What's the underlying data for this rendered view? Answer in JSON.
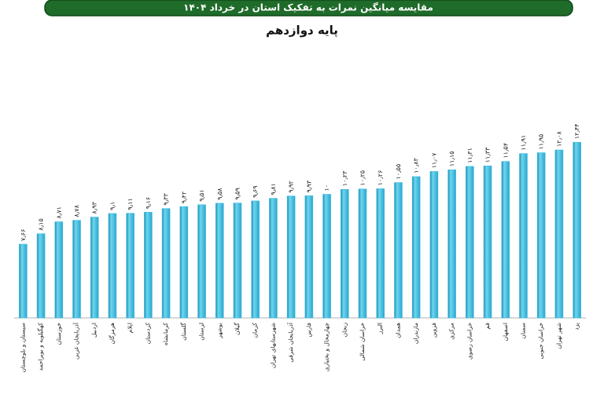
{
  "chart_data": {
    "type": "bar",
    "title": "مقایسه میانگین نمرات به تفکیک استان در خرداد ۱۴۰۴",
    "subtitle": "پایه دوازدهم",
    "categories": [
      "سیستان و بلوچستان",
      "کهگیلویه و بویراحمد",
      "خوزستان",
      "آذربایجان غربی",
      "اردبیل",
      "هرمزگان",
      "ایلام",
      "کردستان",
      "کرمانشاه",
      "گلستان",
      "لرستان",
      "بوشهر",
      "گیلان",
      "کرمان",
      "شهرستانهای تهران",
      "آذربایجان شرقی",
      "فارس",
      "چهارمحال و بختیاری",
      "زنجان",
      "خراسان شمالی",
      "البرز",
      "همدان",
      "مازندران",
      "قزوین",
      "مرکزی",
      "خراسان رضوی",
      "قم",
      "اصفهان",
      "سمنان",
      "خراسان جنوبی",
      "شهر تهران",
      "یزد"
    ],
    "values": [
      7.66,
      8.15,
      8.71,
      8.78,
      8.93,
      9.1,
      9.11,
      9.16,
      9.33,
      9.42,
      9.51,
      9.58,
      9.59,
      9.69,
      9.81,
      9.92,
      9.93,
      10,
      10.23,
      10.25,
      10.26,
      10.55,
      10.83,
      11.07,
      11.15,
      11.31,
      11.33,
      11.54,
      11.91,
      11.95,
      12.08,
      12.44
    ],
    "value_labels": [
      "۷٫۶۶",
      "۸٫۱۵",
      "۸٫۷۱",
      "۸٫۷۸",
      "۸٫۹۳",
      "۹٫۱",
      "۹٫۱۱",
      "۹٫۱۶",
      "۹٫۳۳",
      "۹٫۴۲",
      "۹٫۵۱",
      "۹٫۵۸",
      "۹٫۵۹",
      "۹٫۶۹",
      "۹٫۸۱",
      "۹٫۹۲",
      "۹٫۹۳",
      "۱۰",
      "۱۰٫۲۳",
      "۱۰٫۲۵",
      "۱۰٫۲۶",
      "۱۰٫۵۵",
      "۱۰٫۸۳",
      "۱۱٫۰۷",
      "۱۱٫۱۵",
      "۱۱٫۳۱",
      "۱۱٫۳۳",
      "۱۱٫۵۴",
      "۱۱٫۹۱",
      "۱۱٫۹۵",
      "۱۲٫۰۸",
      "۱۲٫۴۴"
    ],
    "color": "#3fbfe0",
    "ylim": [
      4.2,
      13
    ]
  }
}
